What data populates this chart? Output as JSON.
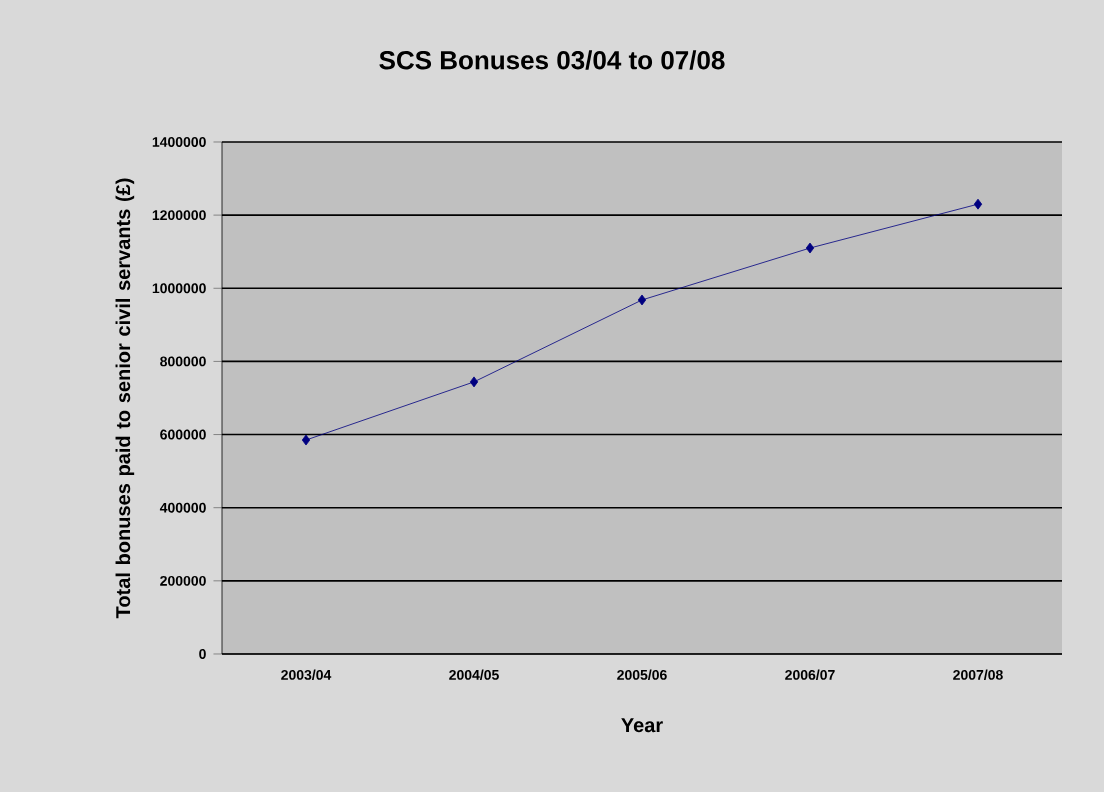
{
  "chart_data": {
    "type": "line",
    "title": "SCS Bonuses 03/04 to 07/08",
    "xlabel": "Year",
    "ylabel": "Total bonuses paid to senior civil servants (£)",
    "categories": [
      "2003/04",
      "2004/05",
      "2005/06",
      "2006/07",
      "2007/08"
    ],
    "series": [
      {
        "color": "#000080",
        "values": [
          585000,
          744000,
          968000,
          1110000,
          1230000
        ]
      }
    ],
    "ylim": [
      0,
      1400000
    ],
    "yticks": [
      0,
      200000,
      400000,
      600000,
      800000,
      1000000,
      1200000,
      1400000
    ],
    "grid": "y",
    "marker": "diamond",
    "line_style": "solid"
  }
}
